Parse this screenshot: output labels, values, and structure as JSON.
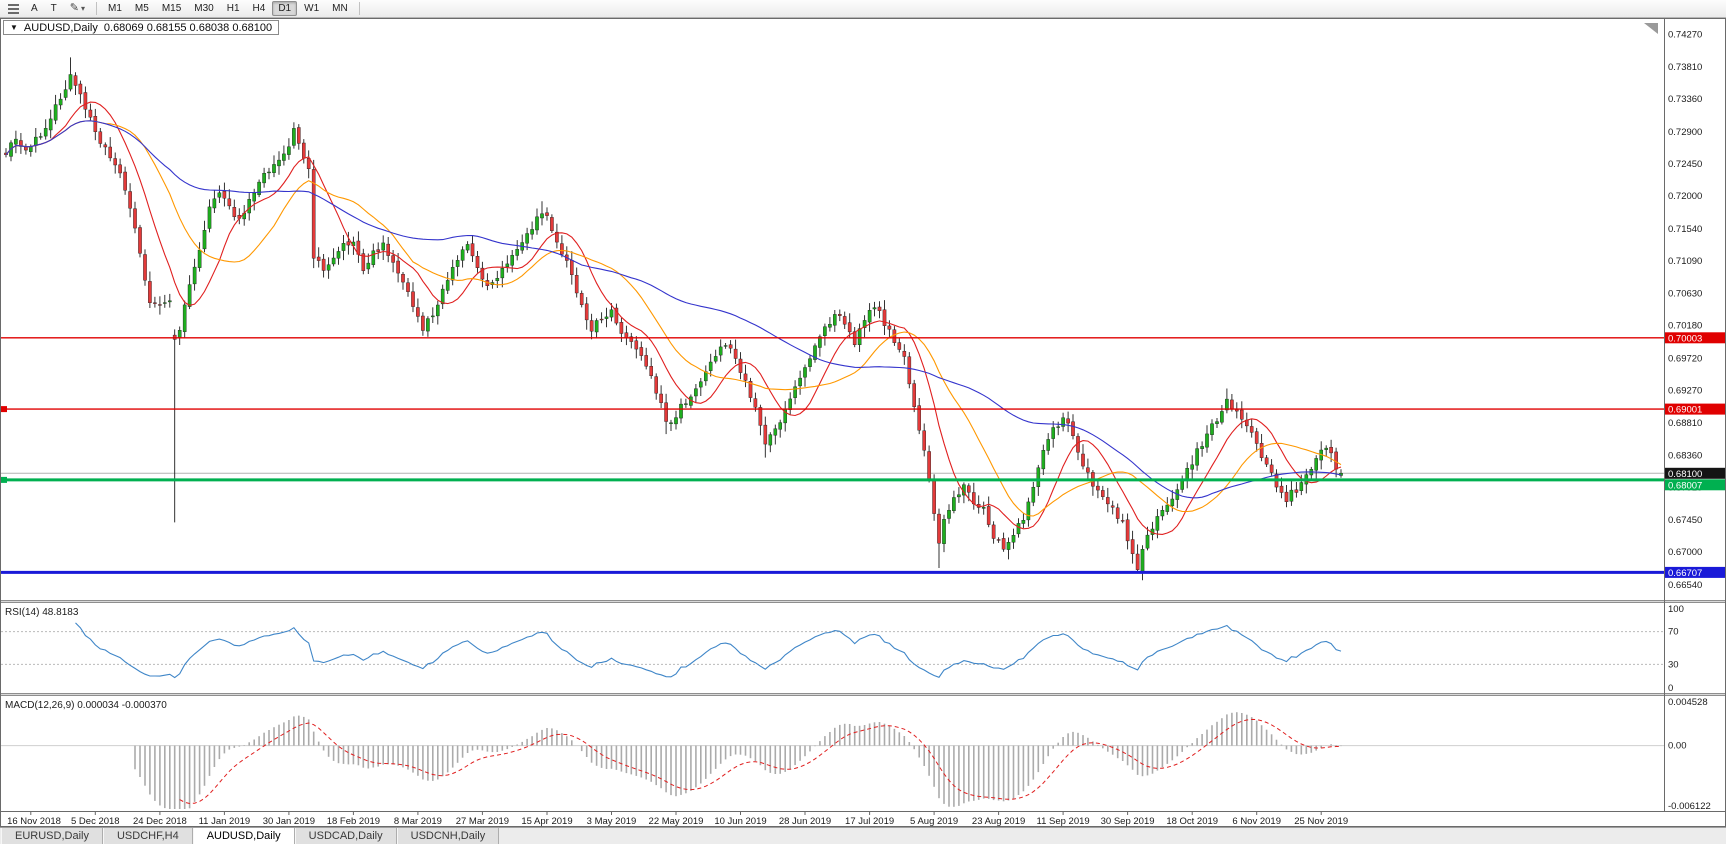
{
  "toolbar": {
    "tool_arrow_label": "A",
    "tool_text_label": "T",
    "timeframes": [
      "M1",
      "M5",
      "M15",
      "M30",
      "H1",
      "H4",
      "D1",
      "W1",
      "MN"
    ],
    "active_timeframe": "D1"
  },
  "icons": {
    "draw_tool": "✎",
    "dropdown_caret": "▾",
    "one_click_arrow": "▼"
  },
  "chart": {
    "symbol_label": "AUDUSD,Daily",
    "ohlc_text": "0.68069 0.68155 0.68038 0.68100"
  },
  "tabs": {
    "active": "AUDUSD,Daily",
    "items": [
      {
        "label": "EURUSD,Daily"
      },
      {
        "label": "USDCHF,H4"
      },
      {
        "label": "AUDUSD,Daily"
      },
      {
        "label": "USDCAD,Daily"
      },
      {
        "label": "USDCNH,Daily"
      }
    ]
  },
  "chart_data": {
    "type": "candlestick",
    "symbol": "AUDUSD",
    "period": "Daily",
    "last_bar": {
      "open": 0.68069,
      "high": 0.68155,
      "low": 0.68038,
      "close": 0.681
    },
    "bars": 270,
    "ylim": [
      0.6632,
      0.7448
    ],
    "noise": 0.0011,
    "wick": 0.0011,
    "bull_color": "#1fae1f",
    "bear_color": "#e33a3a",
    "close_anchors": [
      [
        0,
        0.7262
      ],
      [
        2,
        0.7278
      ],
      [
        4,
        0.7262
      ],
      [
        5,
        0.727
      ],
      [
        7,
        0.7288
      ],
      [
        9,
        0.7308
      ],
      [
        11,
        0.7338
      ],
      [
        13,
        0.7368
      ],
      [
        15,
        0.734
      ],
      [
        17,
        0.7308
      ],
      [
        19,
        0.7275
      ],
      [
        21,
        0.7252
      ],
      [
        23,
        0.7228
      ],
      [
        25,
        0.7185
      ],
      [
        26,
        0.7152
      ],
      [
        27,
        0.7122
      ],
      [
        28,
        0.7082
      ],
      [
        29,
        0.7048
      ],
      [
        31,
        0.7042
      ],
      [
        33,
        0.7052
      ],
      [
        34,
        0.7
      ],
      [
        35,
        0.701
      ],
      [
        37,
        0.7075
      ],
      [
        39,
        0.7128
      ],
      [
        41,
        0.7182
      ],
      [
        43,
        0.72
      ],
      [
        45,
        0.7182
      ],
      [
        47,
        0.7165
      ],
      [
        49,
        0.7192
      ],
      [
        51,
        0.7215
      ],
      [
        53,
        0.7238
      ],
      [
        55,
        0.7252
      ],
      [
        57,
        0.7265
      ],
      [
        58,
        0.729
      ],
      [
        60,
        0.7252
      ],
      [
        61,
        0.7238
      ],
      [
        62,
        0.7112
      ],
      [
        64,
        0.7095
      ],
      [
        66,
        0.7115
      ],
      [
        68,
        0.713
      ],
      [
        70,
        0.7138
      ],
      [
        72,
        0.7095
      ],
      [
        74,
        0.712
      ],
      [
        76,
        0.7132
      ],
      [
        78,
        0.7105
      ],
      [
        80,
        0.7075
      ],
      [
        82,
        0.7048
      ],
      [
        84,
        0.7012
      ],
      [
        86,
        0.7035
      ],
      [
        88,
        0.7068
      ],
      [
        90,
        0.7095
      ],
      [
        92,
        0.712
      ],
      [
        93,
        0.7132
      ],
      [
        95,
        0.7098
      ],
      [
        97,
        0.7072
      ],
      [
        99,
        0.7088
      ],
      [
        101,
        0.7108
      ],
      [
        103,
        0.7125
      ],
      [
        105,
        0.7148
      ],
      [
        107,
        0.7165
      ],
      [
        108,
        0.7178
      ],
      [
        110,
        0.7155
      ],
      [
        112,
        0.7122
      ],
      [
        114,
        0.7088
      ],
      [
        116,
        0.7042
      ],
      [
        118,
        0.7012
      ],
      [
        120,
        0.7028
      ],
      [
        122,
        0.7042
      ],
      [
        124,
        0.7008
      ],
      [
        126,
        0.6992
      ],
      [
        128,
        0.6972
      ],
      [
        130,
        0.695
      ],
      [
        132,
        0.6905
      ],
      [
        133,
        0.6878
      ],
      [
        135,
        0.6892
      ],
      [
        137,
        0.6912
      ],
      [
        139,
        0.6932
      ],
      [
        141,
        0.6955
      ],
      [
        143,
        0.6978
      ],
      [
        145,
        0.6992
      ],
      [
        147,
        0.6972
      ],
      [
        149,
        0.6938
      ],
      [
        151,
        0.6905
      ],
      [
        153,
        0.6852
      ],
      [
        155,
        0.6868
      ],
      [
        157,
        0.6898
      ],
      [
        159,
        0.6932
      ],
      [
        161,
        0.6962
      ],
      [
        163,
        0.6988
      ],
      [
        165,
        0.7012
      ],
      [
        167,
        0.7035
      ],
      [
        169,
        0.7018
      ],
      [
        171,
        0.6995
      ],
      [
        173,
        0.7022
      ],
      [
        175,
        0.7045
      ],
      [
        177,
        0.7022
      ],
      [
        179,
        0.6998
      ],
      [
        181,
        0.697
      ],
      [
        183,
        0.69
      ],
      [
        185,
        0.6842
      ],
      [
        186,
        0.6798
      ],
      [
        188,
        0.6712
      ],
      [
        189,
        0.6745
      ],
      [
        191,
        0.6775
      ],
      [
        193,
        0.679
      ],
      [
        195,
        0.6768
      ],
      [
        197,
        0.6758
      ],
      [
        199,
        0.6722
      ],
      [
        201,
        0.6708
      ],
      [
        203,
        0.6722
      ],
      [
        205,
        0.6748
      ],
      [
        207,
        0.6795
      ],
      [
        209,
        0.684
      ],
      [
        211,
        0.6872
      ],
      [
        213,
        0.6888
      ],
      [
        215,
        0.6862
      ],
      [
        217,
        0.6822
      ],
      [
        219,
        0.6792
      ],
      [
        221,
        0.6775
      ],
      [
        223,
        0.6758
      ],
      [
        225,
        0.6738
      ],
      [
        227,
        0.67
      ],
      [
        228,
        0.6675
      ],
      [
        230,
        0.6722
      ],
      [
        232,
        0.6748
      ],
      [
        234,
        0.6765
      ],
      [
        236,
        0.6788
      ],
      [
        238,
        0.6815
      ],
      [
        240,
        0.684
      ],
      [
        242,
        0.6862
      ],
      [
        244,
        0.6888
      ],
      [
        246,
        0.6915
      ],
      [
        248,
        0.6895
      ],
      [
        250,
        0.6872
      ],
      [
        252,
        0.6852
      ],
      [
        254,
        0.682
      ],
      [
        256,
        0.6792
      ],
      [
        258,
        0.6775
      ],
      [
        260,
        0.6788
      ],
      [
        262,
        0.6805
      ],
      [
        264,
        0.683
      ],
      [
        265,
        0.6842
      ],
      [
        266,
        0.685
      ],
      [
        267,
        0.684
      ],
      [
        268,
        0.682
      ],
      [
        269,
        0.681
      ]
    ],
    "key_bars": {
      "13": {
        "h": 0.7394
      },
      "34": {
        "o": 0.7004,
        "h": 0.7012,
        "l": 0.6741,
        "c": 0.6998
      },
      "84": {
        "l": 0.7003
      },
      "108": {
        "h": 0.7192
      },
      "133": {
        "l": 0.6865
      },
      "153": {
        "l": 0.6832
      },
      "188": {
        "l": 0.6677
      },
      "213": {
        "h": 0.6895
      },
      "228": {
        "l": 0.6671
      },
      "246": {
        "h": 0.6929
      },
      "269": {
        "o": 0.68069,
        "h": 0.68155,
        "l": 0.68038,
        "c": 0.681
      }
    },
    "y_ticks": [
      "0.74270",
      "0.73810",
      "0.73360",
      "0.72900",
      "0.72450",
      "0.72000",
      "0.71540",
      "0.71090",
      "0.70630",
      "0.70180",
      "0.69720",
      "0.69270",
      "0.68810",
      "0.68360",
      "0.67910",
      "0.67450",
      "0.67000",
      "0.66540"
    ],
    "x_labels": [
      "16 Nov 2018",
      "5 Dec 2018",
      "24 Dec 2018",
      "11 Jan 2019",
      "30 Jan 2019",
      "18 Feb 2019",
      "8 Mar 2019",
      "27 Mar 2019",
      "15 Apr 2019",
      "3 May 2019",
      "22 May 2019",
      "10 Jun 2019",
      "28 Jun 2019",
      "17 Jul 2019",
      "5 Aug 2019",
      "23 Aug 2019",
      "11 Sep 2019",
      "30 Sep 2019",
      "18 Oct 2019",
      "6 Nov 2019",
      "25 Nov 2019"
    ],
    "x_label_start": 5,
    "x_label_step": 13,
    "levels": [
      {
        "value": 0.70003,
        "label": "0.70003",
        "color": "#e00000",
        "thickness": 1.4,
        "marker": false
      },
      {
        "value": 0.69001,
        "label": "0.69001",
        "color": "#e00000",
        "thickness": 1.4,
        "marker": true
      },
      {
        "value": 0.68007,
        "label": "0.68007",
        "color": "#00b050",
        "thickness": 3,
        "marker": true
      },
      {
        "value": 0.66707,
        "label": "0.66707",
        "color": "#1a1ad8",
        "thickness": 3,
        "marker": false
      }
    ],
    "current_price": {
      "value": 0.681,
      "label": "0.68100",
      "line_color": "#b4b4b4",
      "badge_color": "#141414"
    },
    "moving_averages": [
      {
        "name": "ma-fast",
        "period": 10,
        "color": "#e02020"
      },
      {
        "name": "ma-medium",
        "period": 21,
        "color": "#ff9800"
      },
      {
        "name": "ma-slow",
        "period": 55,
        "color": "#3434cc"
      }
    ],
    "rsi": {
      "label": "RSI(14) 48.8183",
      "period": 14,
      "value": 48.8183,
      "levels": [
        70,
        30
      ],
      "axis_labels": [
        "100",
        "70",
        "30",
        "0"
      ],
      "line_color": "#3f86c8",
      "range": [
        0,
        100
      ]
    },
    "macd": {
      "label": "MACD(12,26,9) 0.000034 -0.000370",
      "fast": 12,
      "slow": 26,
      "signal": 9,
      "macd_value": 3.4e-05,
      "signal_value": -0.00037,
      "axis_labels": [
        "0.004528",
        "0.00",
        "-0.006122"
      ],
      "range": [
        -0.006122,
        0.004528
      ],
      "histogram_color": "#ababab",
      "signal_color": "#e02020"
    }
  }
}
